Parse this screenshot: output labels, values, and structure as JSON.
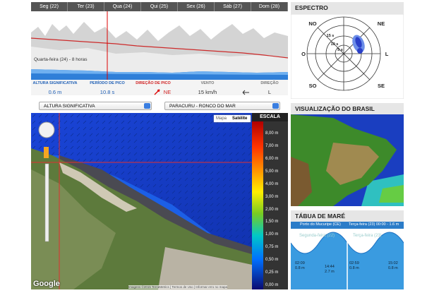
{
  "days": [
    "Seg (22)",
    "Ter (23)",
    "Qua (24)",
    "Qui (25)",
    "Sex (26)",
    "Sáb (27)",
    "Dom (28)"
  ],
  "chart_label": "Quarta-feira (24) - 8 horas",
  "stats": {
    "headers": [
      "ALTURA SIGNIFICATIVA",
      "PERÍODO DE PICO",
      "DIREÇÃO DE PICO",
      "VENTO",
      "DIREÇÃO"
    ],
    "values": [
      "0.6 m",
      "10.8 s",
      "NE",
      "15 km/h",
      "L"
    ]
  },
  "selects": [
    "ALTURA SIGNIFICATIVA",
    "PARACURU - RONCO DO MAR"
  ],
  "map": {
    "buttons": [
      "Mapa",
      "Satélite"
    ],
    "scale_title": "ESCALA",
    "scale": [
      "8,00 m",
      "7,00 m",
      "6,00 m",
      "5,00 m",
      "4,00 m",
      "3,00 m",
      "2,00 m",
      "1,50 m",
      "1,00 m",
      "0,75 m",
      "0,50 m",
      "0,25 m",
      "0,00 m"
    ],
    "logo": "Google",
    "attribution": "Imagens ©2015 TerraMetrics | Termos de Uso | Informar erro no mapa"
  },
  "spectrum": {
    "title": "ESPECTRO",
    "directions": [
      "NO",
      "NE",
      "O",
      "L",
      "SO",
      "SE"
    ],
    "rings": [
      "15 s",
      "10 s",
      "5 s"
    ]
  },
  "brazil": {
    "title": "VISUALIZAÇÃO DO BRASIL"
  },
  "tide": {
    "title": "TÁBUA DE MARÉ",
    "port": "Porto do Mucuripe (CE)",
    "current": "Terça-feira (23) 00:00 - 1.6 m",
    "days": [
      "Segunda-feira (22)",
      "Terça-feira (23)"
    ],
    "labels": [
      [
        "02:09",
        "0.8 m"
      ],
      [
        "14:44",
        "2.7 m"
      ],
      [
        "02:59",
        "0.8 m"
      ],
      [
        "15:02",
        "0.8 m"
      ]
    ]
  }
}
